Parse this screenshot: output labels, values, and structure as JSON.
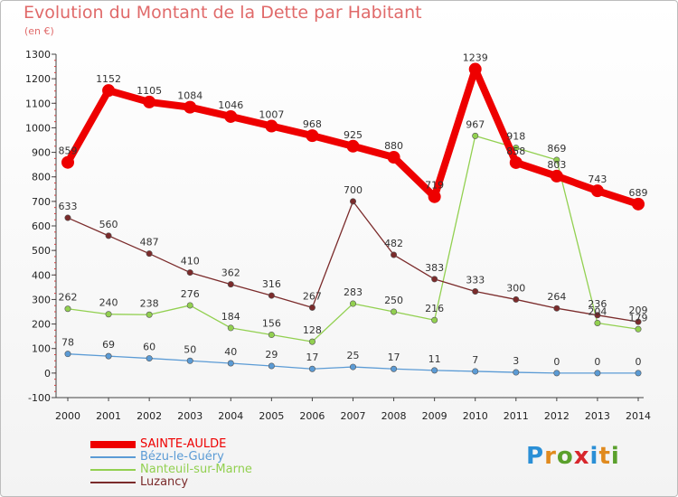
{
  "header": {
    "title": "Evolution du Montant de la Dette par Habitant",
    "subtitle": "(en €)"
  },
  "brand": {
    "name": "Proxiti",
    "letter_colors": [
      "#2a8fd6",
      "#e08a1e",
      "#5aa02c",
      "#d8262c",
      "#2a8fd6",
      "#e08a1e",
      "#5aa02c"
    ]
  },
  "chart_data": {
    "type": "line",
    "title": "Evolution du Montant de la Dette par Habitant",
    "subtitle": "(en €)",
    "xlabel": "",
    "ylabel": "",
    "x": [
      "2000",
      "2001",
      "2002",
      "2003",
      "2004",
      "2005",
      "2006",
      "2007",
      "2008",
      "2009",
      "2010",
      "2011",
      "2012",
      "2013",
      "2014"
    ],
    "ylim": [
      -100,
      1300
    ],
    "yticks": [
      -100,
      0,
      100,
      200,
      300,
      400,
      500,
      600,
      700,
      800,
      900,
      1000,
      1100,
      1200,
      1300
    ],
    "grid": false,
    "legend_position": "bottom-left",
    "series": [
      {
        "name": "SAINTE-AULDE",
        "color": "#ee0000",
        "emphasis": true,
        "values": [
          859,
          1152,
          1105,
          1084,
          1046,
          1007,
          968,
          925,
          880,
          719,
          1239,
          858,
          803,
          743,
          689
        ],
        "labels": [
          "859",
          "1152",
          "1105",
          "1084",
          "1046",
          "1007",
          "968",
          "925",
          "880",
          "719",
          "1239",
          "858",
          "803",
          "743",
          "689"
        ]
      },
      {
        "name": "Bézu-le-Guéry",
        "color": "#5b9bd5",
        "emphasis": false,
        "values": [
          78,
          69,
          60,
          50,
          40,
          29,
          17,
          25,
          17,
          11,
          7,
          3,
          0,
          0,
          0
        ],
        "labels": [
          "78",
          "69",
          "60",
          "50",
          "40",
          "29",
          "17",
          "25",
          "17",
          "11",
          "7",
          "3",
          "0",
          "0",
          "0"
        ]
      },
      {
        "name": "Nanteuil-sur-Marne",
        "color": "#92d050",
        "emphasis": false,
        "values": [
          262,
          240,
          238,
          276,
          184,
          156,
          128,
          283,
          250,
          216,
          967,
          918,
          869,
          204,
          179
        ],
        "labels": [
          "262",
          "240",
          "238",
          "276",
          "184",
          "156",
          "128",
          "283",
          "250",
          "216",
          "967",
          "918",
          "869",
          "204",
          "179"
        ]
      },
      {
        "name": "Luzancy",
        "color": "#7b2b2b",
        "emphasis": false,
        "values": [
          633,
          560,
          487,
          410,
          362,
          316,
          267,
          700,
          482,
          383,
          333,
          300,
          264,
          236,
          209
        ],
        "labels": [
          "633",
          "560",
          "487",
          "410",
          "362",
          "316",
          "267",
          "700",
          "482",
          "383",
          "333",
          "300",
          "264",
          "236",
          "209"
        ]
      }
    ]
  }
}
